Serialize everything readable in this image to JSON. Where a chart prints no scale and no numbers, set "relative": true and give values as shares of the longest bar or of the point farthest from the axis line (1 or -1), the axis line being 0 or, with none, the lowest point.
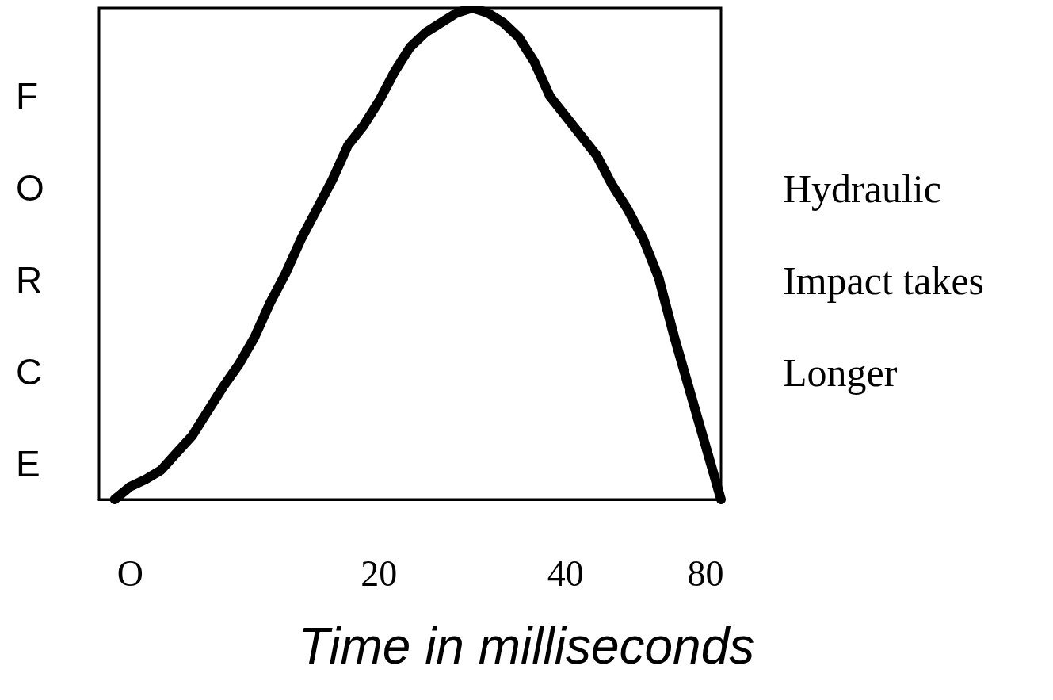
{
  "chart_data": {
    "type": "line",
    "relative": true,
    "ylabel": "FORCE",
    "xlabel": "Time in milliseconds",
    "annotations": [
      "Hydraulic Impact takes Longer"
    ],
    "categories": [
      null,
      null,
      "O",
      null,
      null,
      null,
      null,
      null,
      null,
      null,
      null,
      null,
      null,
      null,
      null,
      null,
      null,
      null,
      "20",
      null,
      null,
      null,
      null,
      null,
      null,
      null,
      null,
      null,
      null,
      null,
      "40",
      null,
      null,
      null,
      null,
      null,
      null,
      null,
      null,
      "80",
      null
    ],
    "series": [
      {
        "color": "#000000",
        "values": [
          null,
          0,
          0.026,
          0.041,
          0.06,
          0.095,
          0.13,
          0.18,
          0.23,
          0.275,
          0.33,
          0.4,
          0.46,
          0.53,
          0.59,
          0.65,
          0.72,
          0.76,
          0.81,
          0.87,
          0.92,
          0.95,
          0.97,
          0.99,
          1,
          0.99,
          0.97,
          0.94,
          0.89,
          0.82,
          0.78,
          0.74,
          0.7,
          0.64,
          0.59,
          0.53,
          0.45,
          0.33,
          0.22,
          0.11,
          0
        ]
      }
    ],
    "grid": false,
    "line_style": "solid"
  }
}
